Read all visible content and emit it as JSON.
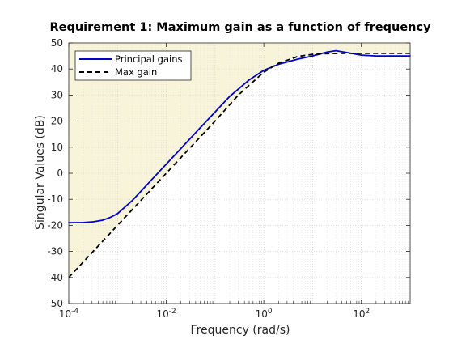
{
  "chart_data": {
    "type": "line",
    "title": "Requirement 1: Maximum gain as a function of frequency",
    "xlabel": "Frequency (rad/s)",
    "ylabel": "Singular Values (dB)",
    "xscale": "log",
    "xlim": [
      0.0001,
      1000
    ],
    "ylim": [
      -50,
      50
    ],
    "x_ticks": [
      {
        "value": 0.0001,
        "base": "10",
        "exp": "-4"
      },
      {
        "value": 0.01,
        "base": "10",
        "exp": "-2"
      },
      {
        "value": 1,
        "base": "10",
        "exp": "0"
      },
      {
        "value": 100,
        "base": "10",
        "exp": "2"
      }
    ],
    "y_ticks": [
      50,
      40,
      30,
      20,
      10,
      0,
      -10,
      -20,
      -30,
      -40,
      -50
    ],
    "y_tick_labels": [
      "50",
      "40",
      "30",
      "20",
      "10",
      "0",
      "-10",
      "-20",
      "-30",
      "-40",
      "-50"
    ],
    "grid": true,
    "legend_position": "top-left",
    "shaded_region": {
      "description": "area above the Max gain requirement curve",
      "color": "#f7f4d9"
    },
    "series": [
      {
        "name": "Principal gains",
        "style": "solid",
        "color": "#0000cc",
        "x": [
          0.0001,
          0.0002,
          0.0003,
          0.0005,
          0.0007,
          0.001,
          0.002,
          0.003,
          0.005,
          0.01,
          0.02,
          0.05,
          0.1,
          0.2,
          0.5,
          1,
          2,
          5,
          10,
          20,
          30,
          50,
          100,
          200,
          500,
          1000
        ],
        "y": [
          -19,
          -18.9,
          -18.7,
          -18,
          -17,
          -15.5,
          -10.5,
          -7,
          -2.5,
          3.5,
          9.5,
          17.5,
          23.5,
          29.5,
          35.8,
          39.5,
          41.8,
          43.8,
          45,
          46.5,
          47,
          46.3,
          45.3,
          45,
          45,
          45
        ]
      },
      {
        "name": "Max gain",
        "style": "dashed",
        "color": "#000000",
        "x": [
          0.0001,
          0.001,
          0.01,
          0.1,
          0.3,
          1,
          2,
          5,
          10,
          20,
          50,
          100,
          1000
        ],
        "y": [
          -40,
          -20,
          0,
          20,
          30,
          38.8,
          42.2,
          44.8,
          45.6,
          45.9,
          46,
          46,
          46
        ]
      }
    ]
  }
}
